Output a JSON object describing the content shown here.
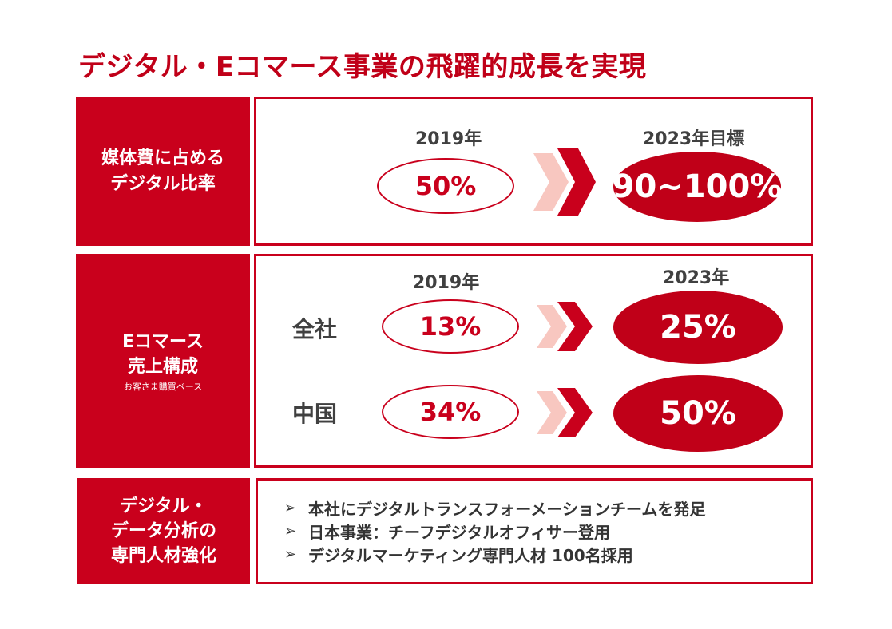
{
  "title": "デジタル・Eコマース事業の飛躍的成長を実現",
  "section1": {
    "label_line1": "媒体費に占める",
    "label_line2": "デジタル比率",
    "year_from": "2019年",
    "year_to": "2023年目標",
    "value_from": "50%",
    "value_to": "90~100%"
  },
  "section2": {
    "label_line1": "Eコマース",
    "label_line2": "売上構成",
    "label_sub": "お客さま購買ベース",
    "year_from": "2019年",
    "year_to": "2023年",
    "rows": [
      {
        "label": "全社",
        "value_from": "13%",
        "value_to": "25%"
      },
      {
        "label": "中国",
        "value_from": "34%",
        "value_to": "50%"
      }
    ]
  },
  "section3": {
    "label_line1": "デジタル・",
    "label_line2": "データ分析の",
    "label_line3": "専門人材強化",
    "bullet_mark": "➢",
    "bullets": [
      "本社にデジタルトランスフォーメーションチームを発足",
      "日本事業：チーフデジタルオフィサー登用",
      "デジタルマーケティング専門人材 100名採用"
    ]
  },
  "colors": {
    "primary_red": "#c9001c",
    "light_chevron": "#f8c7c0",
    "text_gray": "#404040"
  }
}
